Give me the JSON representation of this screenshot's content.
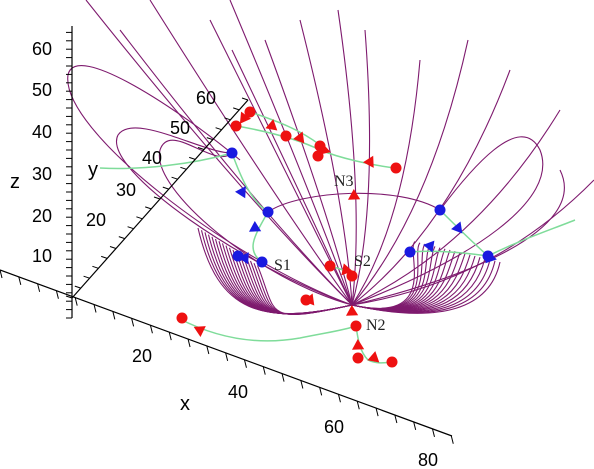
{
  "chart_data": {
    "type": "3d-line",
    "axis_titles": {
      "x": "x",
      "y": "y",
      "z": "z"
    },
    "x_ticks": [
      "20",
      "40",
      "60",
      "80"
    ],
    "y_ticks": [
      "20",
      "30",
      "40",
      "50",
      "60"
    ],
    "z_ticks": [
      "10",
      "20",
      "30",
      "40",
      "50",
      "60"
    ],
    "point_labels": [
      "N2",
      "N3",
      "S1",
      "S2"
    ],
    "grid": false,
    "colors": {
      "field_lines": "#7e1a6e",
      "trajectories": "#7fdc9a",
      "red_markers": "#ee1111",
      "blue_markers": "#1a1ae0"
    }
  }
}
